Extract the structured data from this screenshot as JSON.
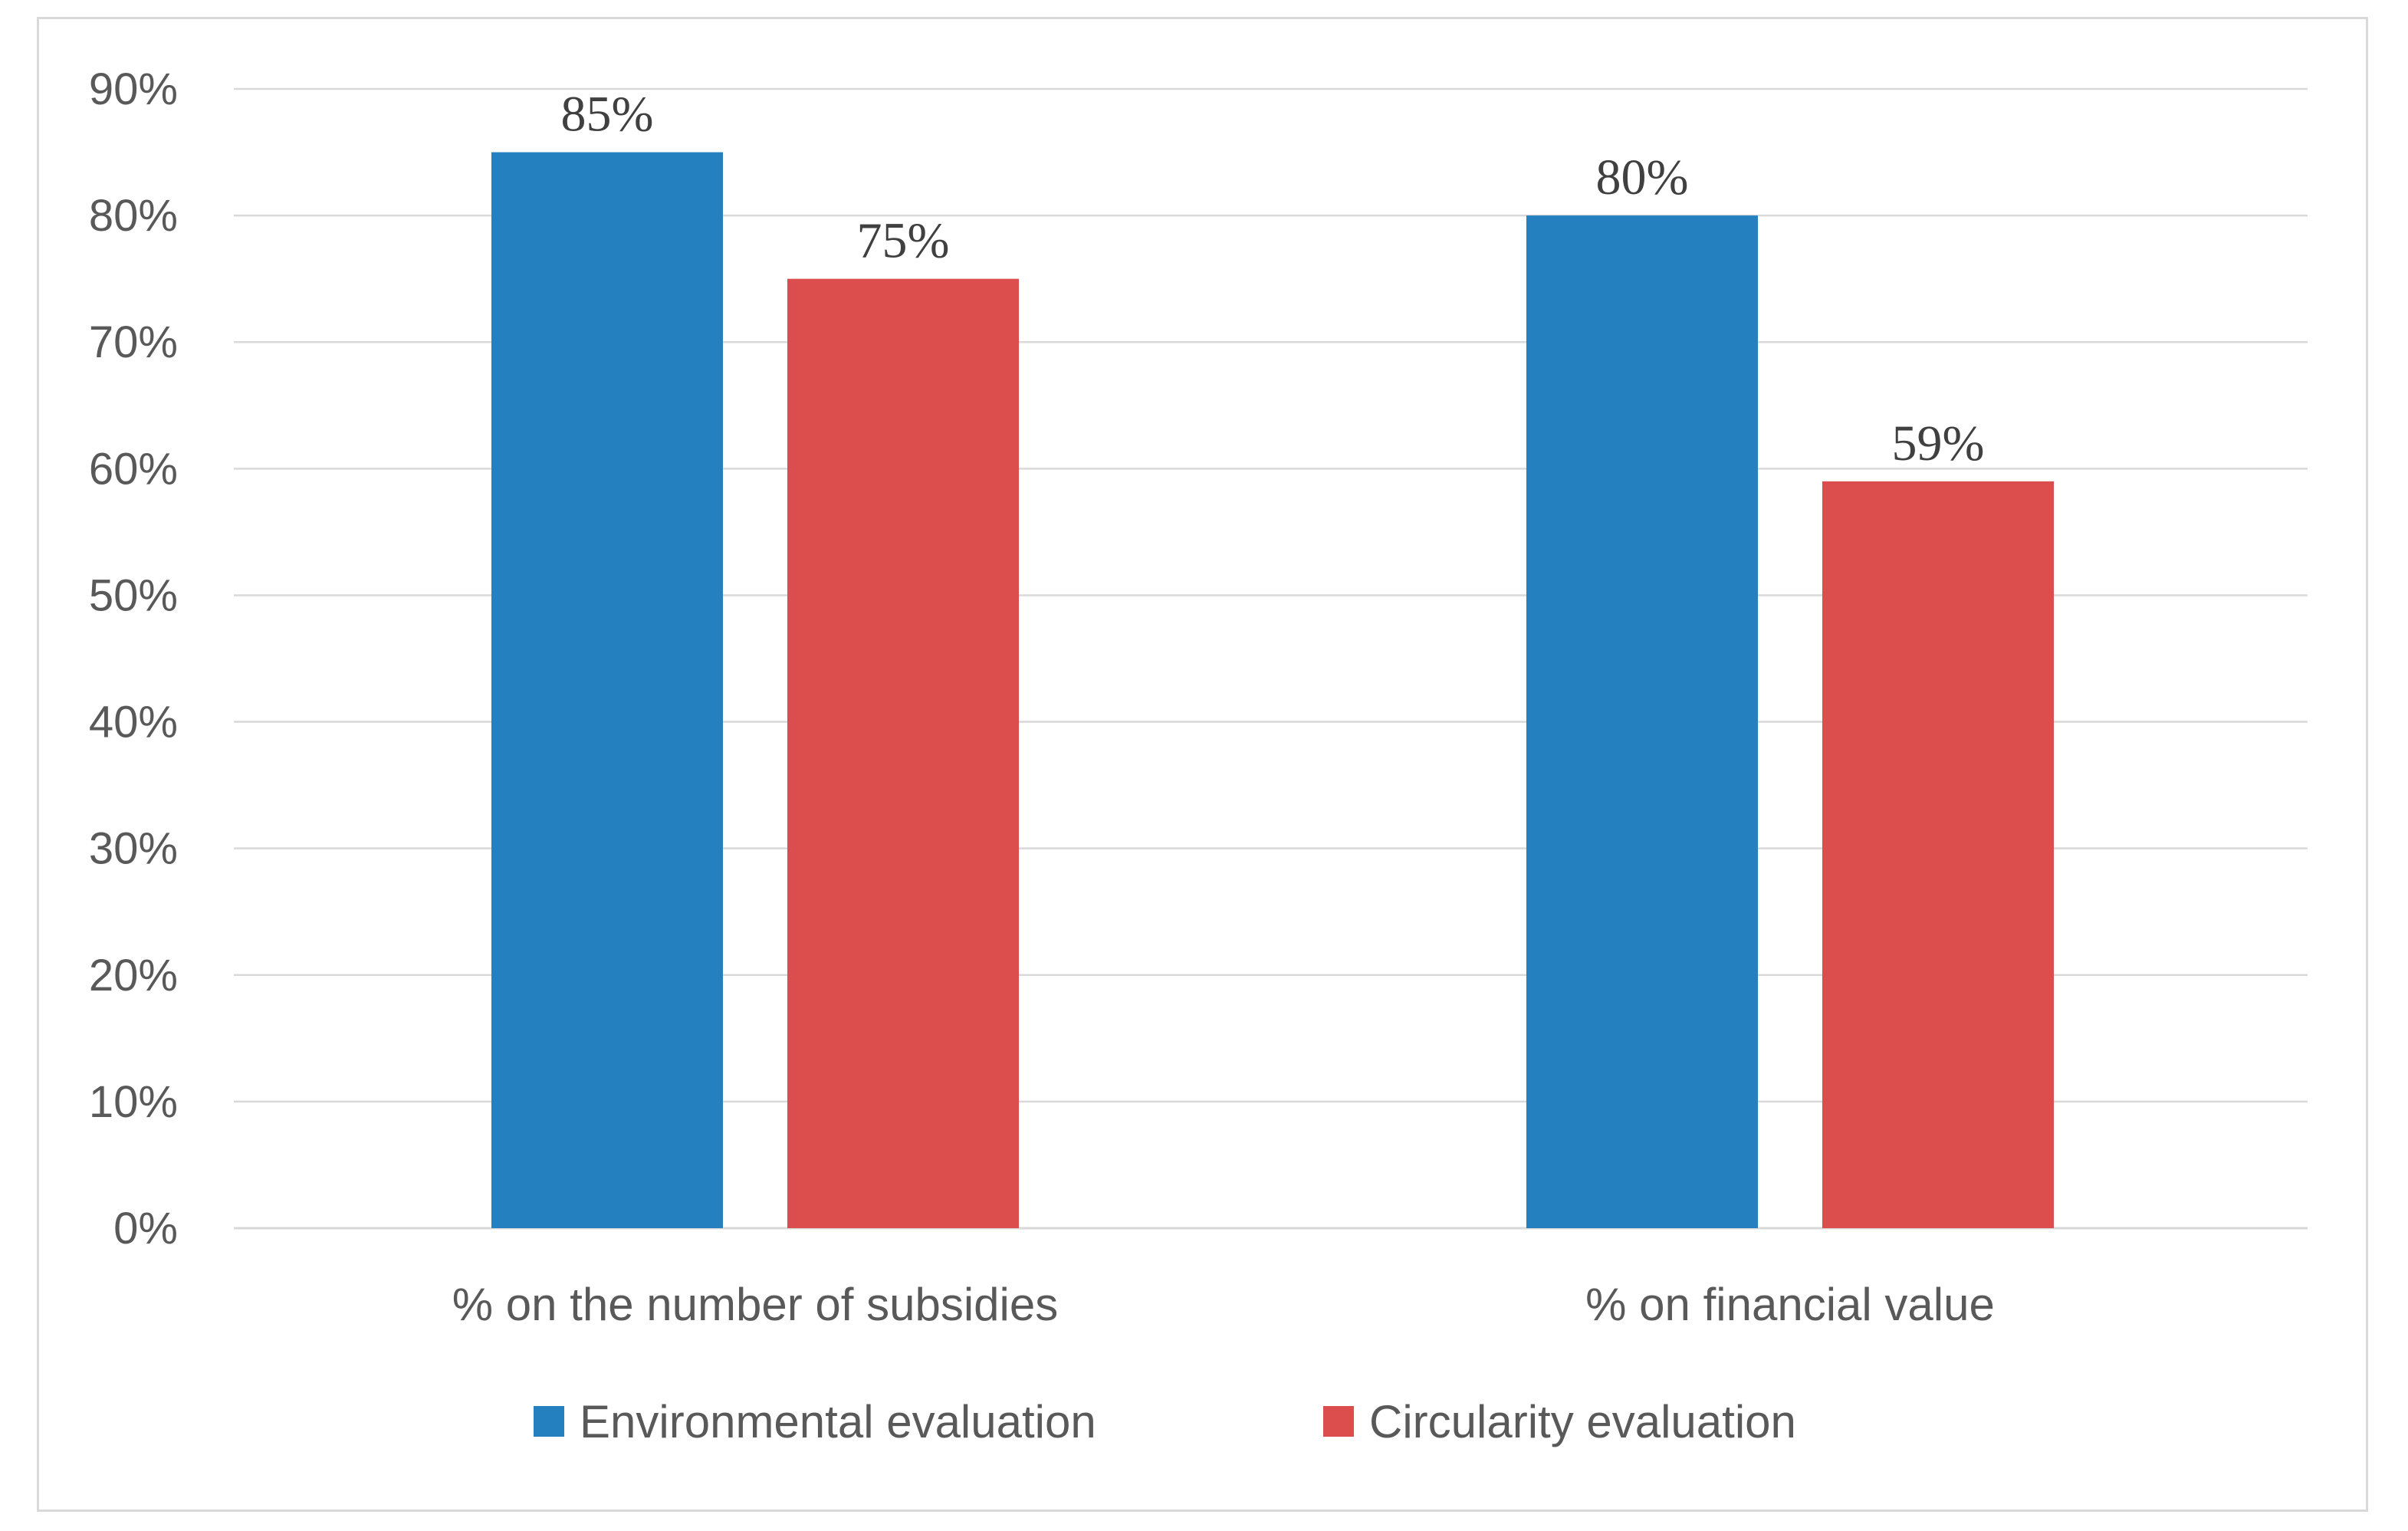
{
  "chart_data": {
    "type": "bar",
    "title": "",
    "xlabel": "",
    "ylabel": "",
    "categories": [
      "% on the number of subsidies",
      "% on financial value"
    ],
    "series": [
      {
        "name": "Environmental evaluation",
        "color": "#2580c0",
        "values": [
          85,
          80
        ],
        "labels": [
          "85%",
          "80%"
        ]
      },
      {
        "name": "Circularity evaluation",
        "color": "#dc4e4d",
        "values": [
          75,
          59
        ],
        "labels": [
          "75%",
          "59%"
        ]
      }
    ],
    "ylim": [
      0,
      90
    ],
    "yticks": [
      0,
      10,
      20,
      30,
      40,
      50,
      60,
      70,
      80,
      90
    ],
    "ytick_labels": [
      "0%",
      "10%",
      "20%",
      "30%",
      "40%",
      "50%",
      "60%",
      "70%",
      "80%",
      "90%"
    ],
    "grid": true,
    "legend_position": "bottom"
  },
  "colors": {
    "grid": "#d9d9d9",
    "axis": "#d9d9d9"
  }
}
